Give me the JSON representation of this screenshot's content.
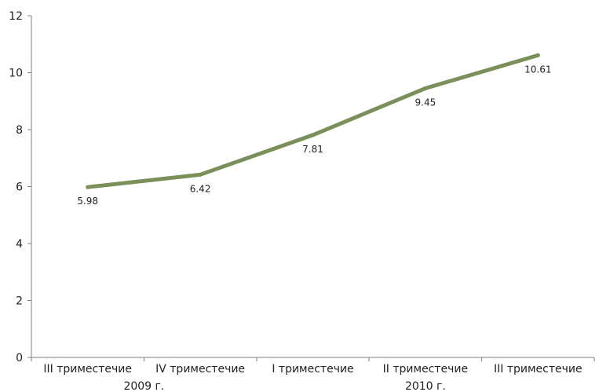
{
  "chart_data": {
    "type": "line",
    "categories": [
      "III триместечие",
      "IV триместечие",
      "I триместечие",
      "II триместечие",
      "III триместечие"
    ],
    "groups": [
      {
        "label": "2009 г.",
        "span": [
          0,
          1
        ]
      },
      {
        "label": "2010 г.",
        "span": [
          2,
          4
        ]
      }
    ],
    "series": [
      {
        "values": [
          5.98,
          6.42,
          7.81,
          9.45,
          10.61
        ],
        "color": "#7b8f5b"
      }
    ],
    "data_labels": [
      "5.98",
      "6.42",
      "7.81",
      "9.45",
      "10.61"
    ],
    "ylim": [
      0,
      12
    ],
    "yticks": [
      0,
      2,
      4,
      6,
      8,
      10,
      12
    ],
    "grid": false,
    "legend": "none"
  }
}
